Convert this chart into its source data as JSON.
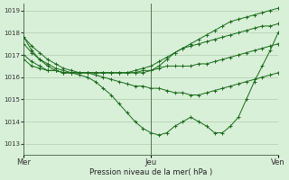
{
  "title": "",
  "xlabel": "Pression niveau de la mer( hPa )",
  "ylabel": "",
  "background_color": "#d8efd8",
  "grid_color": "#b0ccb0",
  "line_color": "#1a6b1a",
  "marker_color": "#1a6b1a",
  "ylim": [
    1012.5,
    1019.3
  ],
  "yticks": [
    1013,
    1014,
    1015,
    1016,
    1017,
    1018,
    1019
  ],
  "day_labels": [
    "Mer",
    "Jeu",
    "Ven"
  ],
  "day_positions": [
    0,
    16,
    32
  ],
  "n_points": 33,
  "series": [
    [
      1017.8,
      1017.4,
      1017.1,
      1016.8,
      1016.6,
      1016.4,
      1016.3,
      1016.2,
      1016.2,
      1016.2,
      1016.2,
      1016.2,
      1016.2,
      1016.2,
      1016.2,
      1016.2,
      1016.3,
      1016.5,
      1016.8,
      1017.1,
      1017.3,
      1017.5,
      1017.7,
      1017.9,
      1018.1,
      1018.3,
      1018.5,
      1018.6,
      1018.7,
      1018.8,
      1018.9,
      1019.0,
      1019.1
    ],
    [
      1017.5,
      1017.1,
      1016.8,
      1016.6,
      1016.4,
      1016.3,
      1016.2,
      1016.2,
      1016.2,
      1016.2,
      1016.2,
      1016.2,
      1016.2,
      1016.2,
      1016.3,
      1016.4,
      1016.5,
      1016.7,
      1016.9,
      1017.1,
      1017.3,
      1017.4,
      1017.5,
      1017.6,
      1017.7,
      1017.8,
      1017.9,
      1018.0,
      1018.1,
      1018.2,
      1018.3,
      1018.3,
      1018.4
    ],
    [
      1017.0,
      1016.7,
      1016.5,
      1016.3,
      1016.3,
      1016.2,
      1016.2,
      1016.2,
      1016.2,
      1016.2,
      1016.2,
      1016.2,
      1016.2,
      1016.2,
      1016.2,
      1016.3,
      1016.3,
      1016.4,
      1016.5,
      1016.5,
      1016.5,
      1016.5,
      1016.6,
      1016.6,
      1016.7,
      1016.8,
      1016.9,
      1017.0,
      1017.1,
      1017.2,
      1017.3,
      1017.4,
      1017.5
    ],
    [
      1016.8,
      1016.5,
      1016.4,
      1016.3,
      1016.3,
      1016.2,
      1016.2,
      1016.2,
      1016.2,
      1016.1,
      1016.0,
      1015.9,
      1015.8,
      1015.7,
      1015.6,
      1015.6,
      1015.5,
      1015.5,
      1015.4,
      1015.3,
      1015.3,
      1015.2,
      1015.2,
      1015.3,
      1015.4,
      1015.5,
      1015.6,
      1015.7,
      1015.8,
      1015.9,
      1016.0,
      1016.1,
      1016.2
    ],
    [
      1017.8,
      1017.2,
      1016.8,
      1016.5,
      1016.3,
      1016.2,
      1016.2,
      1016.1,
      1016.0,
      1015.8,
      1015.5,
      1015.2,
      1014.8,
      1014.4,
      1014.0,
      1013.7,
      1013.5,
      1013.4,
      1013.5,
      1013.8,
      1014.0,
      1014.2,
      1014.0,
      1013.8,
      1013.5,
      1013.5,
      1013.8,
      1014.2,
      1015.0,
      1015.8,
      1016.5,
      1017.2,
      1018.0
    ]
  ]
}
